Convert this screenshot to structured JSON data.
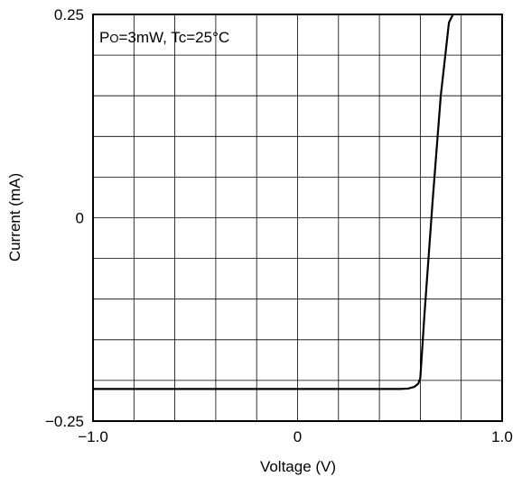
{
  "chart_data": {
    "type": "line",
    "title": "",
    "xlabel": "Voltage (V)",
    "ylabel": "Current (mA)",
    "xlim": [
      -1.0,
      1.0
    ],
    "ylim": [
      -0.25,
      0.25
    ],
    "x_ticks": [
      {
        "value": -1.0,
        "label": "−1.0"
      },
      {
        "value": 0,
        "label": "0"
      },
      {
        "value": 1.0,
        "label": "1.0"
      }
    ],
    "y_ticks": [
      {
        "value": 0.25,
        "label": "0.25"
      },
      {
        "value": 0,
        "label": "0"
      },
      {
        "value": -0.25,
        "label": "−0.25"
      }
    ],
    "grid": true,
    "grid_x_divisions": 10,
    "grid_y_divisions": 10,
    "annotation": {
      "prefix": "P",
      "subscript": "O",
      "rest": "=3mW, Tc=25°C"
    },
    "series": [
      {
        "x": [
          -1.0,
          -0.5,
          0.0,
          0.3,
          0.5,
          0.54,
          0.57,
          0.59,
          0.6,
          0.62,
          0.66,
          0.7,
          0.74,
          0.76
        ],
        "y": [
          -0.2105,
          -0.2105,
          -0.2105,
          -0.2105,
          -0.2105,
          -0.21,
          -0.208,
          -0.204,
          -0.197,
          -0.12,
          0.02,
          0.15,
          0.24,
          0.25
        ],
        "color": "#000000"
      }
    ]
  }
}
